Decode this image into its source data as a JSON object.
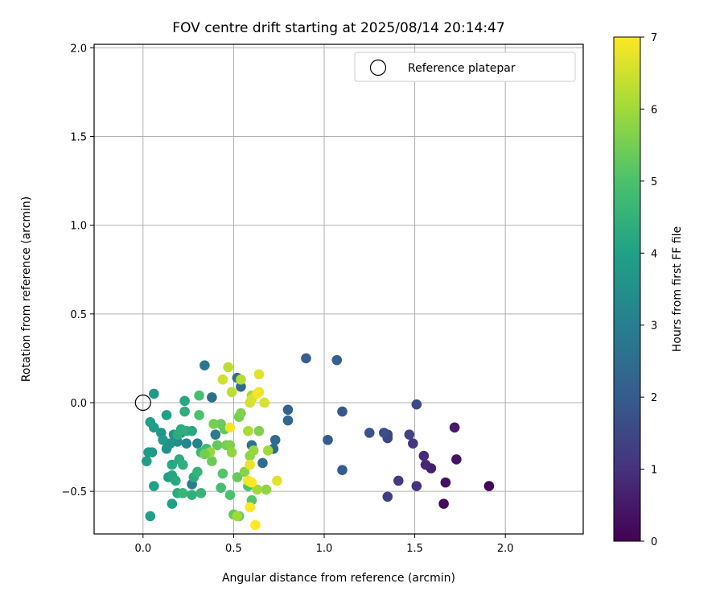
{
  "chart_data": {
    "type": "scatter",
    "title": "FOV centre drift starting at 2025/08/14 20:14:47",
    "xlabel": "Angular distance from reference (arcmin)",
    "ylabel": "Rotation from reference (arcmin)",
    "xlim": [
      -0.27,
      2.43
    ],
    "ylim": [
      -0.74,
      2.02
    ],
    "xticks": [
      0.0,
      0.5,
      1.0,
      1.5,
      2.0
    ],
    "xtick_labels": [
      "0.0",
      "0.5",
      "1.0",
      "1.5",
      "2.0"
    ],
    "yticks": [
      -0.5,
      0.0,
      0.5,
      1.0,
      1.5,
      2.0
    ],
    "ytick_labels": [
      "−0.5",
      "0.0",
      "0.5",
      "1.0",
      "1.5",
      "2.0"
    ],
    "grid": true,
    "legend": {
      "position": "top-right",
      "entries": [
        "Reference platepar"
      ]
    },
    "reference_point": {
      "x": 0.0,
      "y": 0.0,
      "marker": "open-circle"
    },
    "colorbar": {
      "label": "Hours from first FF file",
      "range": [
        0,
        7
      ],
      "ticks": [
        0,
        1,
        2,
        3,
        4,
        5,
        6,
        7
      ],
      "colormap": "viridis"
    },
    "point_fields": [
      "x",
      "y",
      "hours"
    ],
    "points": [
      [
        1.91,
        -0.47,
        0.1
      ],
      [
        1.66,
        -0.57,
        0.2
      ],
      [
        1.67,
        -0.45,
        0.3
      ],
      [
        1.73,
        -0.32,
        0.4
      ],
      [
        1.72,
        -0.14,
        0.5
      ],
      [
        1.59,
        -0.37,
        0.6
      ],
      [
        1.56,
        -0.35,
        0.8
      ],
      [
        1.55,
        -0.3,
        0.9
      ],
      [
        1.51,
        -0.47,
        1.0
      ],
      [
        1.49,
        -0.23,
        1.1
      ],
      [
        1.41,
        -0.44,
        1.2
      ],
      [
        1.35,
        -0.53,
        1.3
      ],
      [
        1.35,
        -0.18,
        1.4
      ],
      [
        1.35,
        -0.2,
        1.5
      ],
      [
        1.47,
        -0.18,
        1.4
      ],
      [
        1.51,
        -0.01,
        1.6
      ],
      [
        1.33,
        -0.17,
        1.7
      ],
      [
        1.25,
        -0.17,
        1.8
      ],
      [
        1.1,
        -0.05,
        1.9
      ],
      [
        1.1,
        -0.38,
        2.0
      ],
      [
        1.02,
        -0.21,
        2.0
      ],
      [
        1.07,
        0.24,
        2.1
      ],
      [
        0.9,
        0.25,
        2.1
      ],
      [
        0.8,
        -0.04,
        2.2
      ],
      [
        0.8,
        -0.1,
        2.3
      ],
      [
        0.73,
        -0.21,
        2.4
      ],
      [
        0.72,
        -0.26,
        2.4
      ],
      [
        0.66,
        -0.34,
        2.5
      ],
      [
        0.6,
        -0.24,
        2.6
      ],
      [
        0.54,
        0.09,
        2.4
      ],
      [
        0.52,
        0.14,
        2.5
      ],
      [
        0.38,
        0.03,
        2.5
      ],
      [
        0.34,
        0.21,
        2.8
      ],
      [
        0.4,
        -0.18,
        2.9
      ],
      [
        0.27,
        -0.46,
        3.0
      ],
      [
        0.3,
        -0.23,
        3.1
      ],
      [
        0.24,
        -0.23,
        3.2
      ],
      [
        0.21,
        -0.17,
        3.3
      ],
      [
        0.19,
        -0.22,
        3.4
      ],
      [
        0.17,
        -0.18,
        3.5
      ],
      [
        0.15,
        -0.23,
        3.5
      ],
      [
        0.13,
        -0.26,
        3.6
      ],
      [
        0.1,
        -0.17,
        3.7
      ],
      [
        0.11,
        -0.21,
        3.8
      ],
      [
        0.06,
        -0.14,
        3.8
      ],
      [
        0.04,
        -0.11,
        3.9
      ],
      [
        0.05,
        -0.28,
        3.7
      ],
      [
        0.03,
        -0.28,
        3.8
      ],
      [
        0.02,
        -0.33,
        3.9
      ],
      [
        0.06,
        0.05,
        3.8
      ],
      [
        0.06,
        -0.47,
        4.0
      ],
      [
        0.04,
        -0.64,
        3.9
      ],
      [
        0.14,
        -0.42,
        4.0
      ],
      [
        0.16,
        -0.57,
        4.0
      ],
      [
        0.16,
        -0.41,
        4.1
      ],
      [
        0.16,
        -0.35,
        4.2
      ],
      [
        0.18,
        -0.44,
        4.2
      ],
      [
        0.19,
        -0.51,
        4.3
      ],
      [
        0.2,
        -0.32,
        4.3
      ],
      [
        0.22,
        -0.35,
        4.4
      ],
      [
        0.19,
        -0.18,
        4.3
      ],
      [
        0.21,
        -0.15,
        4.3
      ],
      [
        0.24,
        -0.16,
        4.4
      ],
      [
        0.23,
        -0.05,
        4.4
      ],
      [
        0.27,
        -0.16,
        4.2
      ],
      [
        0.28,
        -0.42,
        4.3
      ],
      [
        0.27,
        -0.52,
        4.4
      ],
      [
        0.3,
        -0.39,
        4.5
      ],
      [
        0.32,
        -0.51,
        4.6
      ],
      [
        0.23,
        0.01,
        4.2
      ],
      [
        0.32,
        -0.28,
        4.7
      ],
      [
        0.35,
        -0.26,
        4.8
      ],
      [
        0.31,
        0.04,
        4.9
      ],
      [
        0.22,
        -0.51,
        4.6
      ],
      [
        0.13,
        -0.07,
        4.0
      ],
      [
        0.43,
        -0.48,
        4.9
      ],
      [
        0.48,
        -0.52,
        5.0
      ],
      [
        0.44,
        -0.4,
        5.1
      ],
      [
        0.58,
        -0.47,
        5.0
      ],
      [
        0.6,
        -0.55,
        5.1
      ],
      [
        0.53,
        -0.64,
        5.2
      ],
      [
        0.5,
        -0.63,
        5.3
      ],
      [
        0.52,
        -0.42,
        5.3
      ],
      [
        0.41,
        -0.24,
        5.3
      ],
      [
        0.43,
        -0.12,
        5.4
      ],
      [
        0.46,
        -0.24,
        5.5
      ],
      [
        0.45,
        -0.15,
        5.3
      ],
      [
        0.38,
        -0.33,
        5.4
      ],
      [
        0.39,
        -0.12,
        5.5
      ],
      [
        0.31,
        -0.07,
        5.0
      ],
      [
        0.48,
        -0.24,
        5.6
      ],
      [
        0.53,
        -0.08,
        5.5
      ],
      [
        0.54,
        -0.06,
        5.6
      ],
      [
        0.56,
        -0.39,
        5.7
      ],
      [
        0.59,
        -0.3,
        5.8
      ],
      [
        0.64,
        -0.16,
        5.6
      ],
      [
        0.61,
        -0.27,
        5.9
      ],
      [
        0.68,
        -0.49,
        5.8
      ],
      [
        0.63,
        -0.49,
        6.0
      ],
      [
        0.69,
        -0.27,
        6.0
      ],
      [
        0.6,
        0.04,
        6.0
      ],
      [
        0.58,
        -0.16,
        6.1
      ],
      [
        0.49,
        -0.28,
        5.8
      ],
      [
        0.49,
        0.06,
        6.3
      ],
      [
        0.54,
        0.13,
        6.2
      ],
      [
        0.47,
        0.2,
        6.3
      ],
      [
        0.44,
        0.13,
        6.5
      ],
      [
        0.59,
        0.0,
        6.5
      ],
      [
        0.6,
        0.02,
        6.6
      ],
      [
        0.64,
        0.16,
        6.7
      ],
      [
        0.67,
        0.0,
        6.6
      ],
      [
        0.64,
        0.06,
        6.8
      ],
      [
        0.63,
        0.05,
        6.9
      ],
      [
        0.48,
        -0.14,
        6.9
      ],
      [
        0.59,
        -0.35,
        6.8
      ],
      [
        0.58,
        -0.44,
        6.9
      ],
      [
        0.6,
        -0.45,
        7.0
      ],
      [
        0.59,
        -0.59,
        7.0
      ],
      [
        0.62,
        -0.69,
        7.0
      ],
      [
        0.74,
        -0.44,
        6.7
      ],
      [
        0.52,
        -0.64,
        6.0
      ],
      [
        0.37,
        -0.28,
        5.9
      ],
      [
        0.34,
        -0.29,
        5.5
      ]
    ]
  }
}
